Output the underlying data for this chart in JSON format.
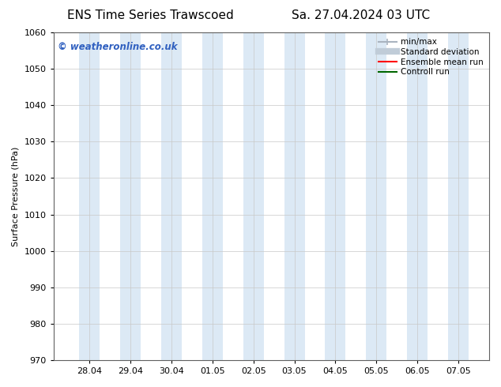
{
  "title_left": "ENS Time Series Trawscoed",
  "title_right": "Sa. 27.04.2024 03 UTC",
  "ylabel": "Surface Pressure (hPa)",
  "ylim": [
    970,
    1060
  ],
  "yticks": [
    970,
    980,
    990,
    1000,
    1010,
    1020,
    1030,
    1040,
    1050,
    1060
  ],
  "x_tick_labels": [
    "28.04",
    "29.04",
    "30.04",
    "01.05",
    "02.05",
    "03.05",
    "04.05",
    "05.05",
    "06.05",
    "07.05"
  ],
  "shaded_color": "#dce9f5",
  "watermark_text": "© weatheronline.co.uk",
  "watermark_color": "#3060c0",
  "background_color": "#ffffff",
  "plot_bg_color": "#ffffff",
  "legend_items": [
    {
      "label": "min/max",
      "color": "#aab4c0",
      "lw": 1.5
    },
    {
      "label": "Standard deviation",
      "color": "#c0ccd8",
      "lw": 6
    },
    {
      "label": "Ensemble mean run",
      "color": "#ff0000",
      "lw": 1.5
    },
    {
      "label": "Controll run",
      "color": "#006600",
      "lw": 1.5
    }
  ],
  "title_fontsize": 11,
  "axis_fontsize": 8,
  "tick_fontsize": 8,
  "watermark_fontsize": 8.5
}
